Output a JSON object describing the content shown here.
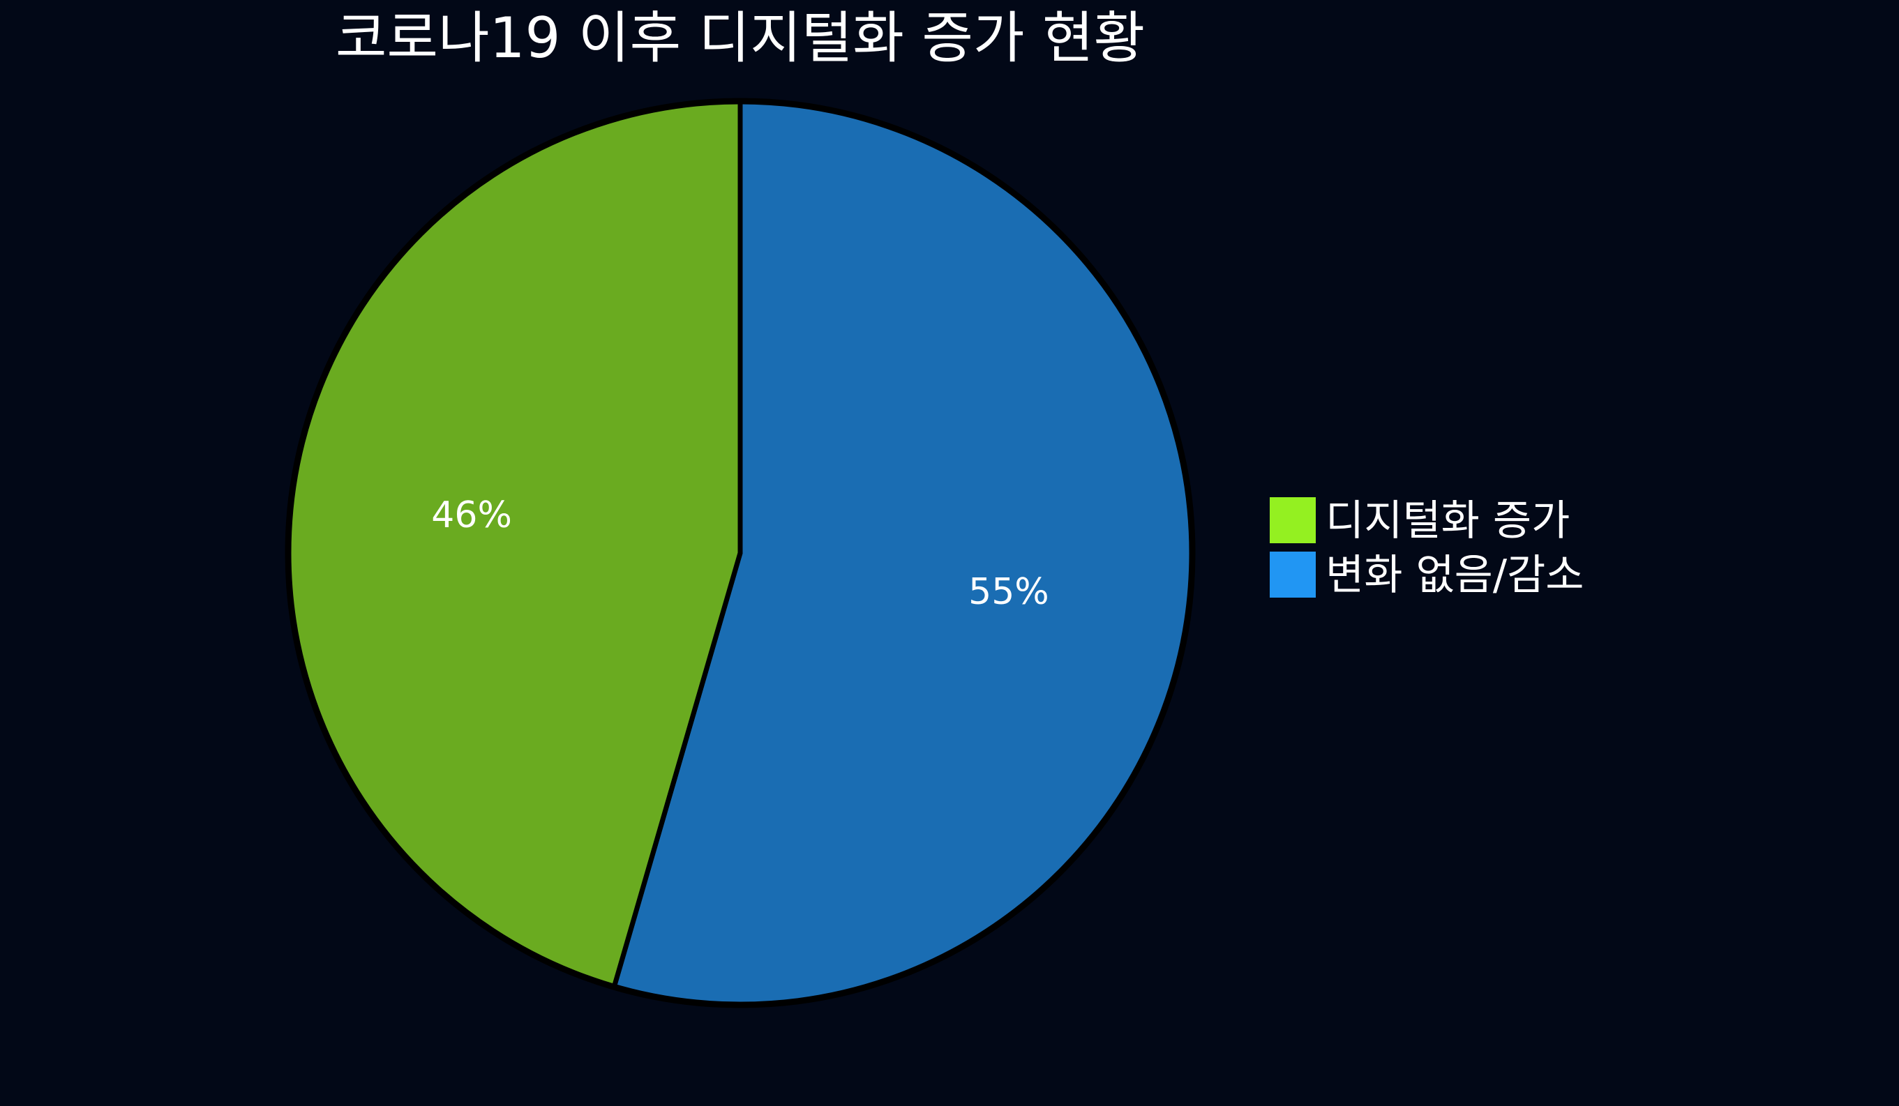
{
  "chart_data": {
    "type": "pie",
    "title": "코로나19 이후 디지털화 증가 현황",
    "slices": [
      {
        "label": "변화 없음/감소",
        "value": 54.5,
        "display": "55%",
        "color": "#1a6db3",
        "legend_color": "#2196f3"
      },
      {
        "label": "디지털화 증가",
        "value": 45.5,
        "display": "46%",
        "color": "#6aab20",
        "legend_color": "#94f021"
      }
    ],
    "start_angle": "top",
    "direction": "clockwise",
    "legend": {
      "placement": "right",
      "order": [
        "디지털화 증가",
        "변화 없음/감소"
      ]
    },
    "background": "#020817",
    "edge_color": "#000000"
  }
}
